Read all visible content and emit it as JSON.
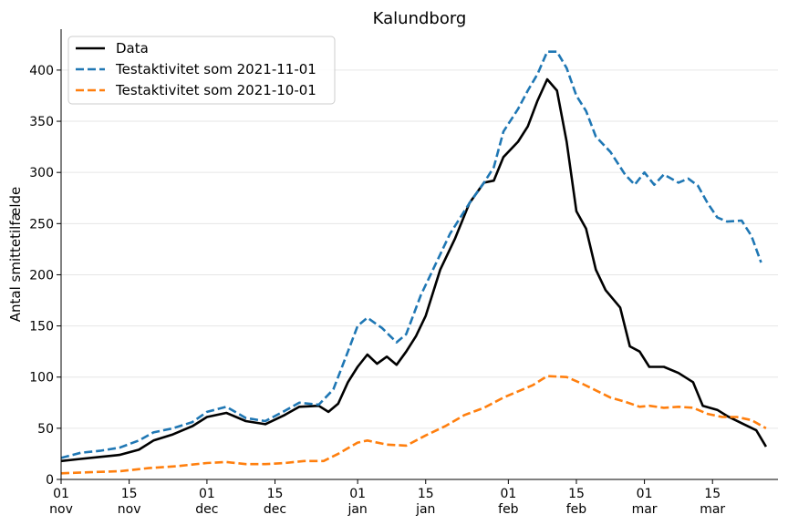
{
  "chart_data": {
    "type": "line",
    "title": "Kalundborg",
    "xlabel": "",
    "ylabel": "Antal smittetilfælde",
    "ylim": [
      0,
      440
    ],
    "yticks": [
      0,
      50,
      100,
      150,
      200,
      250,
      300,
      350,
      400
    ],
    "x_start": "2021-11-01",
    "x_end": "2022-03-27",
    "xticks": [
      {
        "date": "2021-11-01",
        "day": "01",
        "month": "nov"
      },
      {
        "date": "2021-11-15",
        "day": "15",
        "month": "nov"
      },
      {
        "date": "2021-12-01",
        "day": "01",
        "month": "dec"
      },
      {
        "date": "2021-12-15",
        "day": "15",
        "month": "dec"
      },
      {
        "date": "2022-01-01",
        "day": "01",
        "month": "jan"
      },
      {
        "date": "2022-01-15",
        "day": "15",
        "month": "jan"
      },
      {
        "date": "2022-02-01",
        "day": "01",
        "month": "feb"
      },
      {
        "date": "2022-02-15",
        "day": "15",
        "month": "feb"
      },
      {
        "date": "2022-03-01",
        "day": "01",
        "month": "mar"
      },
      {
        "date": "2022-03-15",
        "day": "15",
        "month": "mar"
      }
    ],
    "grid": "horizontal",
    "legend_position": "top-left",
    "series": [
      {
        "name": "Data",
        "color": "#000000",
        "style": "solid",
        "points": [
          [
            "2021-11-01",
            18
          ],
          [
            "2021-11-05",
            20
          ],
          [
            "2021-11-09",
            22
          ],
          [
            "2021-11-13",
            24
          ],
          [
            "2021-11-17",
            29
          ],
          [
            "2021-11-20",
            38
          ],
          [
            "2021-11-24",
            44
          ],
          [
            "2021-11-28",
            52
          ],
          [
            "2021-12-01",
            61
          ],
          [
            "2021-12-05",
            65
          ],
          [
            "2021-12-09",
            57
          ],
          [
            "2021-12-13",
            54
          ],
          [
            "2021-12-17",
            63
          ],
          [
            "2021-12-20",
            71
          ],
          [
            "2021-12-24",
            72
          ],
          [
            "2021-12-26",
            66
          ],
          [
            "2021-12-28",
            74
          ],
          [
            "2021-12-30",
            95
          ],
          [
            "2022-01-01",
            110
          ],
          [
            "2022-01-03",
            122
          ],
          [
            "2022-01-05",
            113
          ],
          [
            "2022-01-07",
            120
          ],
          [
            "2022-01-09",
            112
          ],
          [
            "2022-01-11",
            125
          ],
          [
            "2022-01-13",
            140
          ],
          [
            "2022-01-15",
            160
          ],
          [
            "2022-01-18",
            205
          ],
          [
            "2022-01-21",
            235
          ],
          [
            "2022-01-24",
            270
          ],
          [
            "2022-01-27",
            290
          ],
          [
            "2022-01-29",
            292
          ],
          [
            "2022-01-31",
            315
          ],
          [
            "2022-02-03",
            330
          ],
          [
            "2022-02-05",
            345
          ],
          [
            "2022-02-07",
            370
          ],
          [
            "2022-02-09",
            391
          ],
          [
            "2022-02-11",
            380
          ],
          [
            "2022-02-13",
            330
          ],
          [
            "2022-02-15",
            262
          ],
          [
            "2022-02-17",
            245
          ],
          [
            "2022-02-19",
            205
          ],
          [
            "2022-02-21",
            185
          ],
          [
            "2022-02-24",
            168
          ],
          [
            "2022-02-26",
            130
          ],
          [
            "2022-02-28",
            125
          ],
          [
            "2022-03-02",
            110
          ],
          [
            "2022-03-05",
            110
          ],
          [
            "2022-03-08",
            104
          ],
          [
            "2022-03-11",
            95
          ],
          [
            "2022-03-13",
            72
          ],
          [
            "2022-03-16",
            68
          ],
          [
            "2022-03-18",
            62
          ],
          [
            "2022-03-21",
            55
          ],
          [
            "2022-03-24",
            48
          ],
          [
            "2022-03-26",
            32
          ]
        ]
      },
      {
        "name": "Testaktivitet som 2021-11-01",
        "color": "#1f77b4",
        "style": "dashed",
        "points": [
          [
            "2021-11-01",
            21
          ],
          [
            "2021-11-05",
            26
          ],
          [
            "2021-11-09",
            28
          ],
          [
            "2021-11-13",
            31
          ],
          [
            "2021-11-17",
            38
          ],
          [
            "2021-11-20",
            46
          ],
          [
            "2021-11-24",
            50
          ],
          [
            "2021-11-28",
            56
          ],
          [
            "2021-12-01",
            66
          ],
          [
            "2021-12-05",
            71
          ],
          [
            "2021-12-09",
            60
          ],
          [
            "2021-12-13",
            57
          ],
          [
            "2021-12-17",
            67
          ],
          [
            "2021-12-20",
            75
          ],
          [
            "2021-12-24",
            73
          ],
          [
            "2021-12-27",
            88
          ],
          [
            "2021-12-30",
            125
          ],
          [
            "2022-01-01",
            150
          ],
          [
            "2022-01-03",
            158
          ],
          [
            "2022-01-06",
            148
          ],
          [
            "2022-01-09",
            134
          ],
          [
            "2022-01-11",
            142
          ],
          [
            "2022-01-14",
            180
          ],
          [
            "2022-01-17",
            210
          ],
          [
            "2022-01-20",
            240
          ],
          [
            "2022-01-24",
            270
          ],
          [
            "2022-01-27",
            290
          ],
          [
            "2022-01-29",
            305
          ],
          [
            "2022-01-31",
            340
          ],
          [
            "2022-02-03",
            362
          ],
          [
            "2022-02-05",
            380
          ],
          [
            "2022-02-07",
            396
          ],
          [
            "2022-02-09",
            418
          ],
          [
            "2022-02-11",
            418
          ],
          [
            "2022-02-13",
            402
          ],
          [
            "2022-02-15",
            375
          ],
          [
            "2022-02-17",
            360
          ],
          [
            "2022-02-19",
            335
          ],
          [
            "2022-02-22",
            320
          ],
          [
            "2022-02-25",
            298
          ],
          [
            "2022-02-27",
            288
          ],
          [
            "2022-03-01",
            300
          ],
          [
            "2022-03-03",
            288
          ],
          [
            "2022-03-05",
            298
          ],
          [
            "2022-03-08",
            290
          ],
          [
            "2022-03-10",
            294
          ],
          [
            "2022-03-12",
            287
          ],
          [
            "2022-03-14",
            270
          ],
          [
            "2022-03-16",
            256
          ],
          [
            "2022-03-18",
            252
          ],
          [
            "2022-03-21",
            253
          ],
          [
            "2022-03-23",
            238
          ],
          [
            "2022-03-25",
            212
          ]
        ]
      },
      {
        "name": "Testaktivitet som 2021-10-01",
        "color": "#ff7f0e",
        "style": "dashed",
        "points": [
          [
            "2021-11-01",
            6
          ],
          [
            "2021-11-07",
            7
          ],
          [
            "2021-11-13",
            8
          ],
          [
            "2021-11-19",
            11
          ],
          [
            "2021-11-25",
            13
          ],
          [
            "2021-12-01",
            16
          ],
          [
            "2021-12-05",
            17
          ],
          [
            "2021-12-09",
            15
          ],
          [
            "2021-12-13",
            15
          ],
          [
            "2021-12-17",
            16
          ],
          [
            "2021-12-21",
            18
          ],
          [
            "2021-12-25",
            18
          ],
          [
            "2021-12-28",
            25
          ],
          [
            "2022-01-01",
            36
          ],
          [
            "2022-01-03",
            38
          ],
          [
            "2022-01-07",
            34
          ],
          [
            "2022-01-11",
            33
          ],
          [
            "2022-01-15",
            43
          ],
          [
            "2022-01-19",
            52
          ],
          [
            "2022-01-23",
            63
          ],
          [
            "2022-01-27",
            70
          ],
          [
            "2022-01-31",
            80
          ],
          [
            "2022-02-03",
            86
          ],
          [
            "2022-02-06",
            92
          ],
          [
            "2022-02-09",
            101
          ],
          [
            "2022-02-13",
            100
          ],
          [
            "2022-02-16",
            94
          ],
          [
            "2022-02-19",
            87
          ],
          [
            "2022-02-22",
            80
          ],
          [
            "2022-02-25",
            76
          ],
          [
            "2022-02-28",
            71
          ],
          [
            "2022-03-02",
            72
          ],
          [
            "2022-03-05",
            70
          ],
          [
            "2022-03-08",
            71
          ],
          [
            "2022-03-11",
            70
          ],
          [
            "2022-03-14",
            64
          ],
          [
            "2022-03-17",
            61
          ],
          [
            "2022-03-20",
            61
          ],
          [
            "2022-03-23",
            58
          ],
          [
            "2022-03-26",
            50
          ]
        ]
      }
    ]
  }
}
